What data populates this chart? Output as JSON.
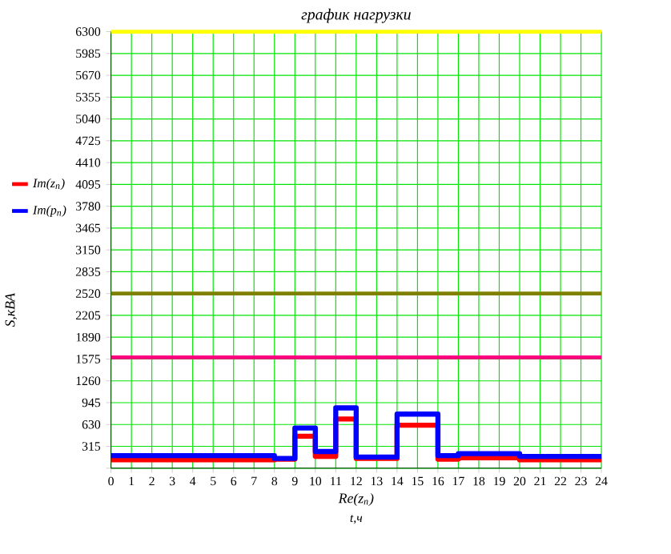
{
  "chart_data": {
    "type": "step",
    "title": "график нагрузки",
    "xlabel": "Re(z$_{n}$)",
    "ylabel": "S,кВА",
    "annotations": [
      "t,ч"
    ],
    "x": [
      0,
      1,
      2,
      3,
      4,
      5,
      6,
      7,
      8,
      9,
      10,
      11,
      12,
      13,
      14,
      15,
      16,
      17,
      18,
      19,
      20,
      21,
      22,
      23,
      24
    ],
    "series": [
      {
        "name": "Im(z$_{n}$)",
        "color": "#ff0000",
        "values": [
          120,
          120,
          120,
          120,
          120,
          120,
          120,
          120,
          130,
          460,
          170,
          710,
          140,
          140,
          620,
          620,
          130,
          150,
          150,
          150,
          120,
          120,
          120,
          120,
          120
        ]
      },
      {
        "name": "Im(p$_{n}$)",
        "color": "#0000ff",
        "values": [
          180,
          180,
          180,
          180,
          180,
          180,
          180,
          180,
          140,
          580,
          240,
          870,
          160,
          160,
          780,
          780,
          180,
          210,
          210,
          210,
          170,
          170,
          170,
          170,
          170
        ]
      }
    ],
    "ref_lines": [
      {
        "axis": "y",
        "value": 6300,
        "color": "#ffff00"
      },
      {
        "axis": "y",
        "value": 2520,
        "color": "#808000"
      },
      {
        "axis": "y",
        "value": 1600,
        "color": "#ff0080"
      }
    ],
    "xlim": [
      0,
      24
    ],
    "ylim": [
      0,
      6300
    ],
    "xticks": [
      0,
      1,
      2,
      3,
      4,
      5,
      6,
      7,
      8,
      9,
      10,
      11,
      12,
      13,
      14,
      15,
      16,
      17,
      18,
      19,
      20,
      21,
      22,
      23,
      24
    ],
    "yticks": [
      {
        "value": 0,
        "label": null
      },
      315,
      630,
      945,
      1260,
      1575,
      1890,
      2205,
      2520,
      2835,
      3150,
      3465,
      3780,
      4095,
      4410,
      4725,
      5040,
      5355,
      5670,
      5985,
      6300
    ],
    "grid": true,
    "legend": "left"
  }
}
